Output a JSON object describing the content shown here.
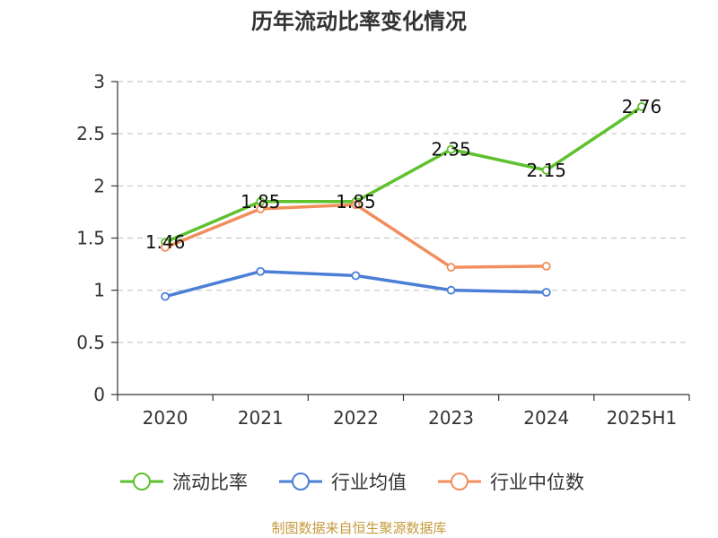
{
  "chart_data": {
    "type": "line",
    "title": "历年流动比率变化情况",
    "categories": [
      "2020",
      "2021",
      "2022",
      "2023",
      "2024",
      "2025H1"
    ],
    "ylim": [
      0,
      3
    ],
    "yticks": [
      0,
      0.5,
      1,
      1.5,
      2,
      2.5,
      3
    ],
    "grid": true,
    "legend_position": "bottom",
    "series": [
      {
        "name": "流动比率",
        "color": "#5ec12e",
        "values": [
          1.46,
          1.85,
          1.85,
          2.35,
          2.15,
          2.76
        ],
        "labels": [
          "1.46",
          "1.85",
          "1.85",
          "2.35",
          "2.15",
          "2.76"
        ]
      },
      {
        "name": "行业均值",
        "color": "#4b7fd6",
        "values": [
          0.94,
          1.18,
          1.14,
          1.0,
          0.98,
          null
        ]
      },
      {
        "name": "行业中位数",
        "color": "#f28e5c",
        "values": [
          1.41,
          1.78,
          1.82,
          1.22,
          1.23,
          null
        ]
      }
    ]
  },
  "source_note": "制图数据来自恒生聚源数据库"
}
